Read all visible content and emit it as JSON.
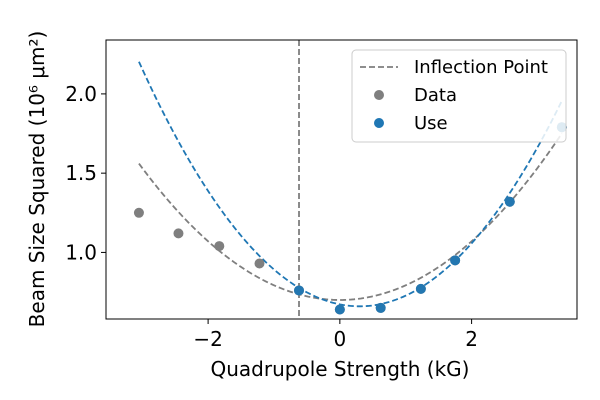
{
  "chart_data": {
    "type": "scatter",
    "xlabel": "Quadrupole Strength (kG)",
    "ylabel": "Beam Size Squared (10⁶ μm²)",
    "xlim": [
      -3.55,
      3.6
    ],
    "ylim": [
      0.58,
      2.34
    ],
    "xticks": [
      -2,
      0,
      2
    ],
    "xtick_labels": [
      "−2",
      "0",
      "2"
    ],
    "yticks": [
      1.0,
      1.5,
      2.0
    ],
    "ytick_labels": [
      "1.0",
      "1.5",
      "2.0"
    ],
    "inflection_point": -0.62,
    "legend": {
      "position": "top-right",
      "entries": [
        {
          "label": "Inflection Point",
          "kind": "dashed-line",
          "color": "#7f7f7f"
        },
        {
          "label": "Data",
          "kind": "marker",
          "color": "#7f7f7f"
        },
        {
          "label": "Use",
          "kind": "marker",
          "color": "#1f77b4"
        }
      ]
    },
    "series": [
      {
        "name": "Data",
        "color": "#7f7f7f",
        "points": [
          {
            "x": -3.05,
            "y": 1.25
          },
          {
            "x": -2.45,
            "y": 1.12
          },
          {
            "x": -1.83,
            "y": 1.04
          },
          {
            "x": -1.22,
            "y": 0.93
          },
          {
            "x": -0.62,
            "y": 0.76
          },
          {
            "x": 0.0,
            "y": 0.64
          },
          {
            "x": 0.62,
            "y": 0.65
          },
          {
            "x": 1.23,
            "y": 0.77
          },
          {
            "x": 1.75,
            "y": 0.95
          },
          {
            "x": 2.58,
            "y": 1.32
          },
          {
            "x": 3.37,
            "y": 1.79
          }
        ]
      },
      {
        "name": "Use",
        "color": "#1f77b4",
        "points": [
          {
            "x": -0.62,
            "y": 0.76
          },
          {
            "x": 0.0,
            "y": 0.64
          },
          {
            "x": 0.62,
            "y": 0.65
          },
          {
            "x": 1.23,
            "y": 0.77
          },
          {
            "x": 1.75,
            "y": 0.95
          },
          {
            "x": 2.58,
            "y": 1.32
          },
          {
            "x": 3.37,
            "y": 1.79
          }
        ]
      }
    ],
    "fits": [
      {
        "series": "Data",
        "color": "#7f7f7f",
        "style": "dashed",
        "x_range": [
          -3.05,
          3.37
        ],
        "quadratic": {
          "a": 0.0925,
          "vertex_x": 0.0,
          "vertex_y": 0.7
        }
      },
      {
        "series": "Use",
        "color": "#1f77b4",
        "style": "dashed",
        "x_range": [
          -3.05,
          3.37
        ],
        "quadratic": {
          "a": 0.1375,
          "vertex_x": 0.3,
          "vertex_y": 0.66
        }
      }
    ]
  }
}
